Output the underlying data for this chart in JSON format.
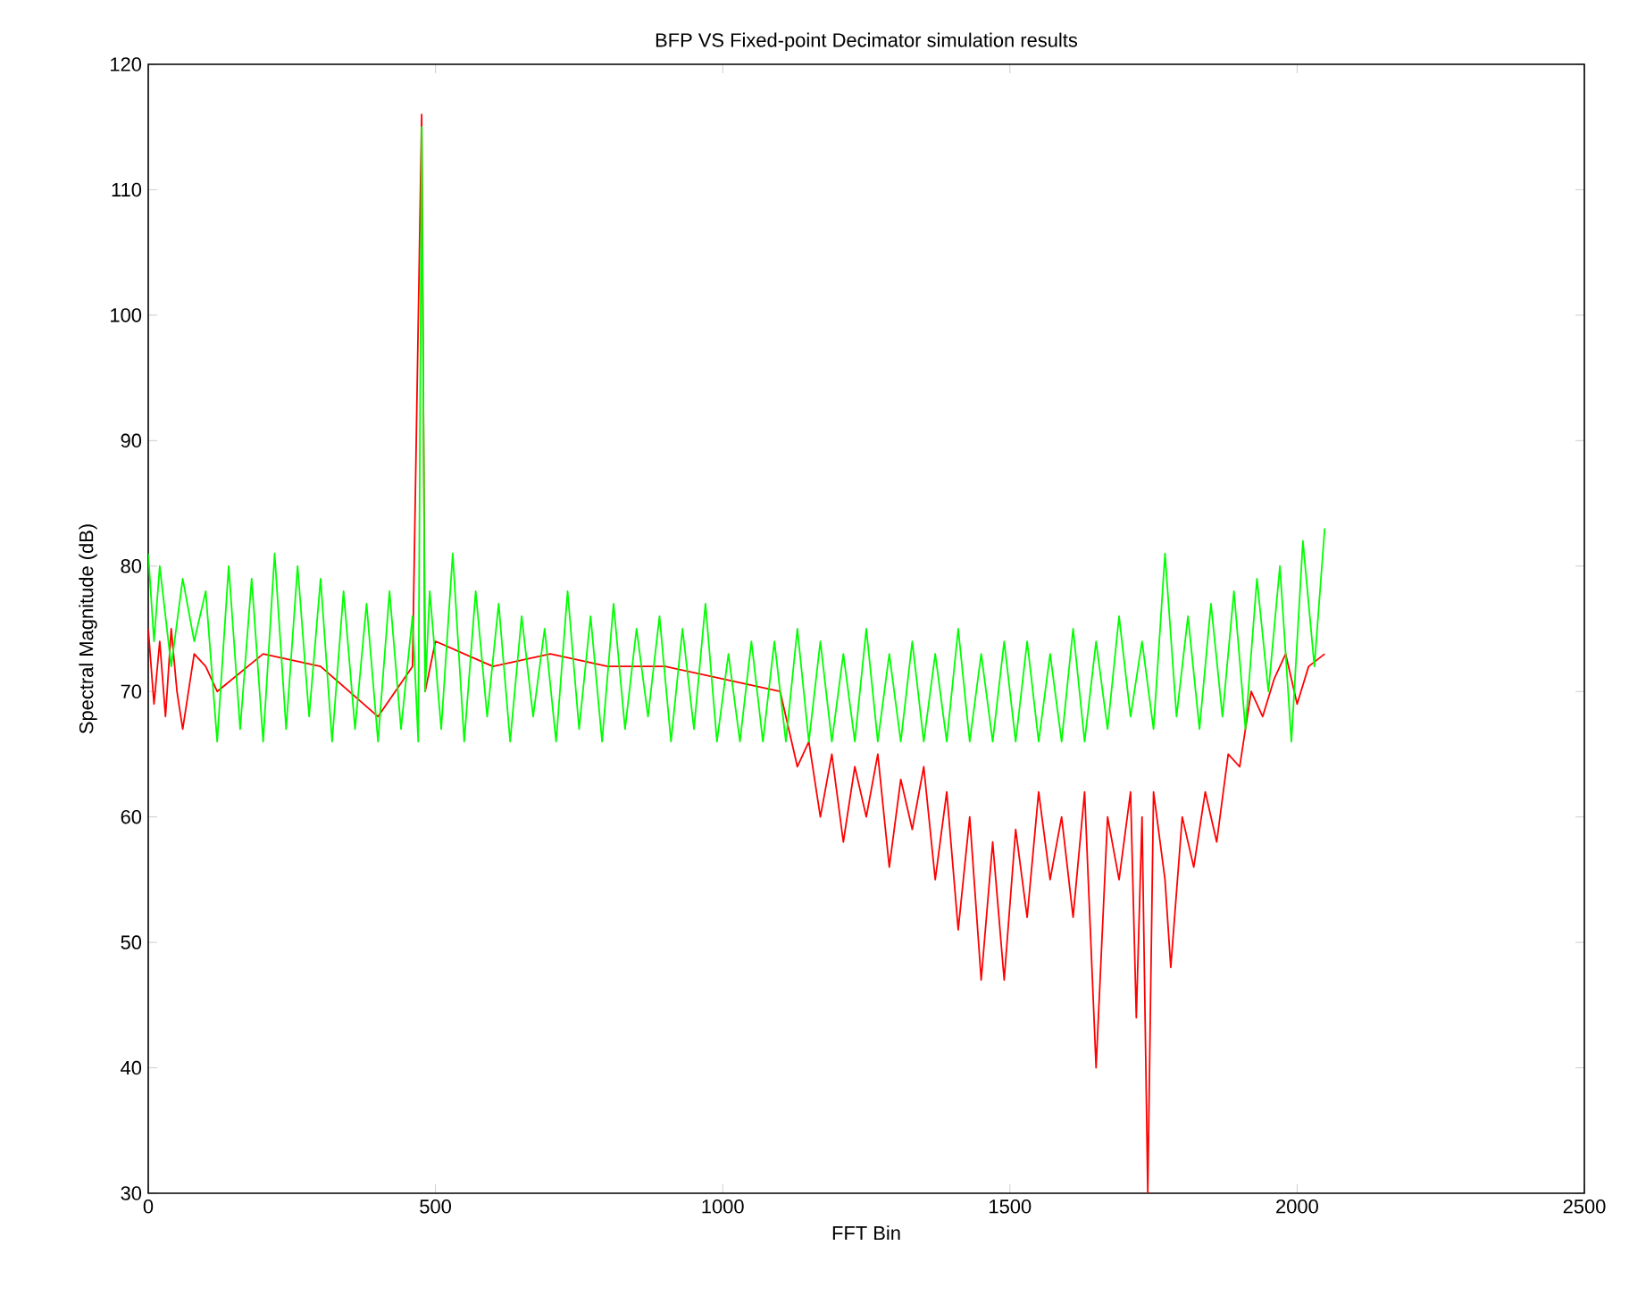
{
  "chart_data": {
    "type": "line",
    "title": "BFP VS Fixed-point Decimator simulation results",
    "xlabel": "FFT Bin",
    "ylabel": "Spectral Magnitude (dB)",
    "xlim": [
      0,
      2500
    ],
    "xticks": [
      0,
      500,
      1000,
      1500,
      2000,
      2500
    ],
    "ylim": [
      30,
      120
    ],
    "yticks": [
      30,
      40,
      50,
      60,
      70,
      80,
      90,
      100,
      110,
      120
    ],
    "grid": false,
    "marker": "none",
    "line_style": "solid",
    "series": [
      {
        "color": "#ff0000",
        "x": [
          0,
          10,
          20,
          30,
          40,
          50,
          60,
          80,
          100,
          120,
          200,
          300,
          400,
          460,
          470,
          476,
          482,
          500,
          600,
          700,
          800,
          900,
          1000,
          1100,
          1130,
          1150,
          1170,
          1190,
          1210,
          1230,
          1250,
          1270,
          1290,
          1310,
          1330,
          1350,
          1370,
          1390,
          1410,
          1430,
          1450,
          1470,
          1490,
          1510,
          1530,
          1550,
          1570,
          1590,
          1610,
          1630,
          1650,
          1670,
          1690,
          1710,
          1720,
          1730,
          1740,
          1750,
          1770,
          1780,
          1800,
          1820,
          1840,
          1860,
          1880,
          1900,
          1920,
          1940,
          1960,
          1980,
          2000,
          2020,
          2048
        ],
        "values": [
          75,
          69,
          74,
          68,
          75,
          70,
          67,
          73,
          72,
          70,
          73,
          72,
          68,
          72,
          null,
          116,
          70,
          74,
          72,
          73,
          72,
          72,
          71,
          70,
          64,
          66,
          60,
          65,
          58,
          64,
          60,
          65,
          56,
          63,
          59,
          64,
          55,
          62,
          51,
          60,
          47,
          58,
          47,
          59,
          52,
          62,
          55,
          60,
          52,
          62,
          40,
          60,
          55,
          62,
          44,
          60,
          30,
          62,
          55,
          48,
          60,
          56,
          62,
          58,
          65,
          64,
          70,
          68,
          71,
          73,
          69,
          72,
          73
        ]
      },
      {
        "color": "#00ff00",
        "x": [
          0,
          10,
          20,
          40,
          60,
          80,
          100,
          120,
          140,
          160,
          180,
          200,
          220,
          240,
          260,
          280,
          300,
          320,
          340,
          360,
          380,
          400,
          420,
          440,
          460,
          470,
          476,
          482,
          490,
          510,
          530,
          550,
          570,
          590,
          610,
          630,
          650,
          670,
          690,
          710,
          730,
          750,
          770,
          790,
          810,
          830,
          850,
          870,
          890,
          910,
          930,
          950,
          970,
          990,
          1010,
          1030,
          1050,
          1070,
          1090,
          1110,
          1130,
          1150,
          1170,
          1190,
          1210,
          1230,
          1250,
          1270,
          1290,
          1310,
          1330,
          1350,
          1370,
          1390,
          1410,
          1430,
          1450,
          1470,
          1490,
          1510,
          1530,
          1550,
          1570,
          1590,
          1610,
          1630,
          1650,
          1670,
          1690,
          1710,
          1730,
          1750,
          1770,
          1790,
          1810,
          1830,
          1850,
          1870,
          1890,
          1910,
          1930,
          1950,
          1970,
          1990,
          2010,
          2030,
          2048
        ],
        "values": [
          81,
          74,
          80,
          72,
          79,
          74,
          78,
          66,
          80,
          67,
          79,
          66,
          81,
          67,
          80,
          68,
          79,
          66,
          78,
          67,
          77,
          66,
          78,
          67,
          76,
          66,
          115,
          70,
          78,
          67,
          81,
          66,
          78,
          68,
          77,
          66,
          76,
          68,
          75,
          66,
          78,
          67,
          76,
          66,
          77,
          67,
          75,
          68,
          76,
          66,
          75,
          67,
          77,
          66,
          73,
          66,
          74,
          66,
          74,
          66,
          75,
          66,
          74,
          66,
          73,
          66,
          75,
          66,
          73,
          66,
          74,
          66,
          73,
          66,
          75,
          66,
          73,
          66,
          74,
          66,
          74,
          66,
          73,
          66,
          75,
          66,
          74,
          67,
          76,
          68,
          74,
          67,
          81,
          68,
          76,
          67,
          77,
          68,
          78,
          67,
          79,
          70,
          80,
          66,
          82,
          72,
          83
        ]
      }
    ]
  }
}
